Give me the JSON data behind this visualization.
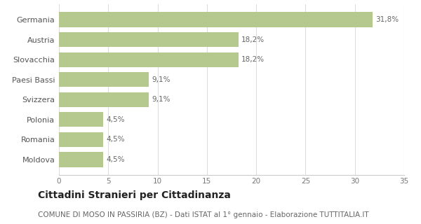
{
  "categories": [
    "Moldova",
    "Romania",
    "Polonia",
    "Svizzera",
    "Paesi Bassi",
    "Slovacchia",
    "Austria",
    "Germania"
  ],
  "values": [
    4.5,
    4.5,
    4.5,
    9.1,
    9.1,
    18.2,
    18.2,
    31.8
  ],
  "labels": [
    "4,5%",
    "4,5%",
    "4,5%",
    "9,1%",
    "9,1%",
    "18,2%",
    "18,2%",
    "31,8%"
  ],
  "bar_color": "#b5c98e",
  "background_color": "#ffffff",
  "title": "Cittadini Stranieri per Cittadinanza",
  "subtitle": "COMUNE DI MOSO IN PASSIRIA (BZ) - Dati ISTAT al 1° gennaio - Elaborazione TUTTITALIA.IT",
  "xlim": [
    0,
    35
  ],
  "xticks": [
    0,
    5,
    10,
    15,
    20,
    25,
    30,
    35
  ],
  "title_fontsize": 10,
  "subtitle_fontsize": 7.5,
  "label_fontsize": 7.5,
  "tick_fontsize": 7.5,
  "category_fontsize": 8
}
